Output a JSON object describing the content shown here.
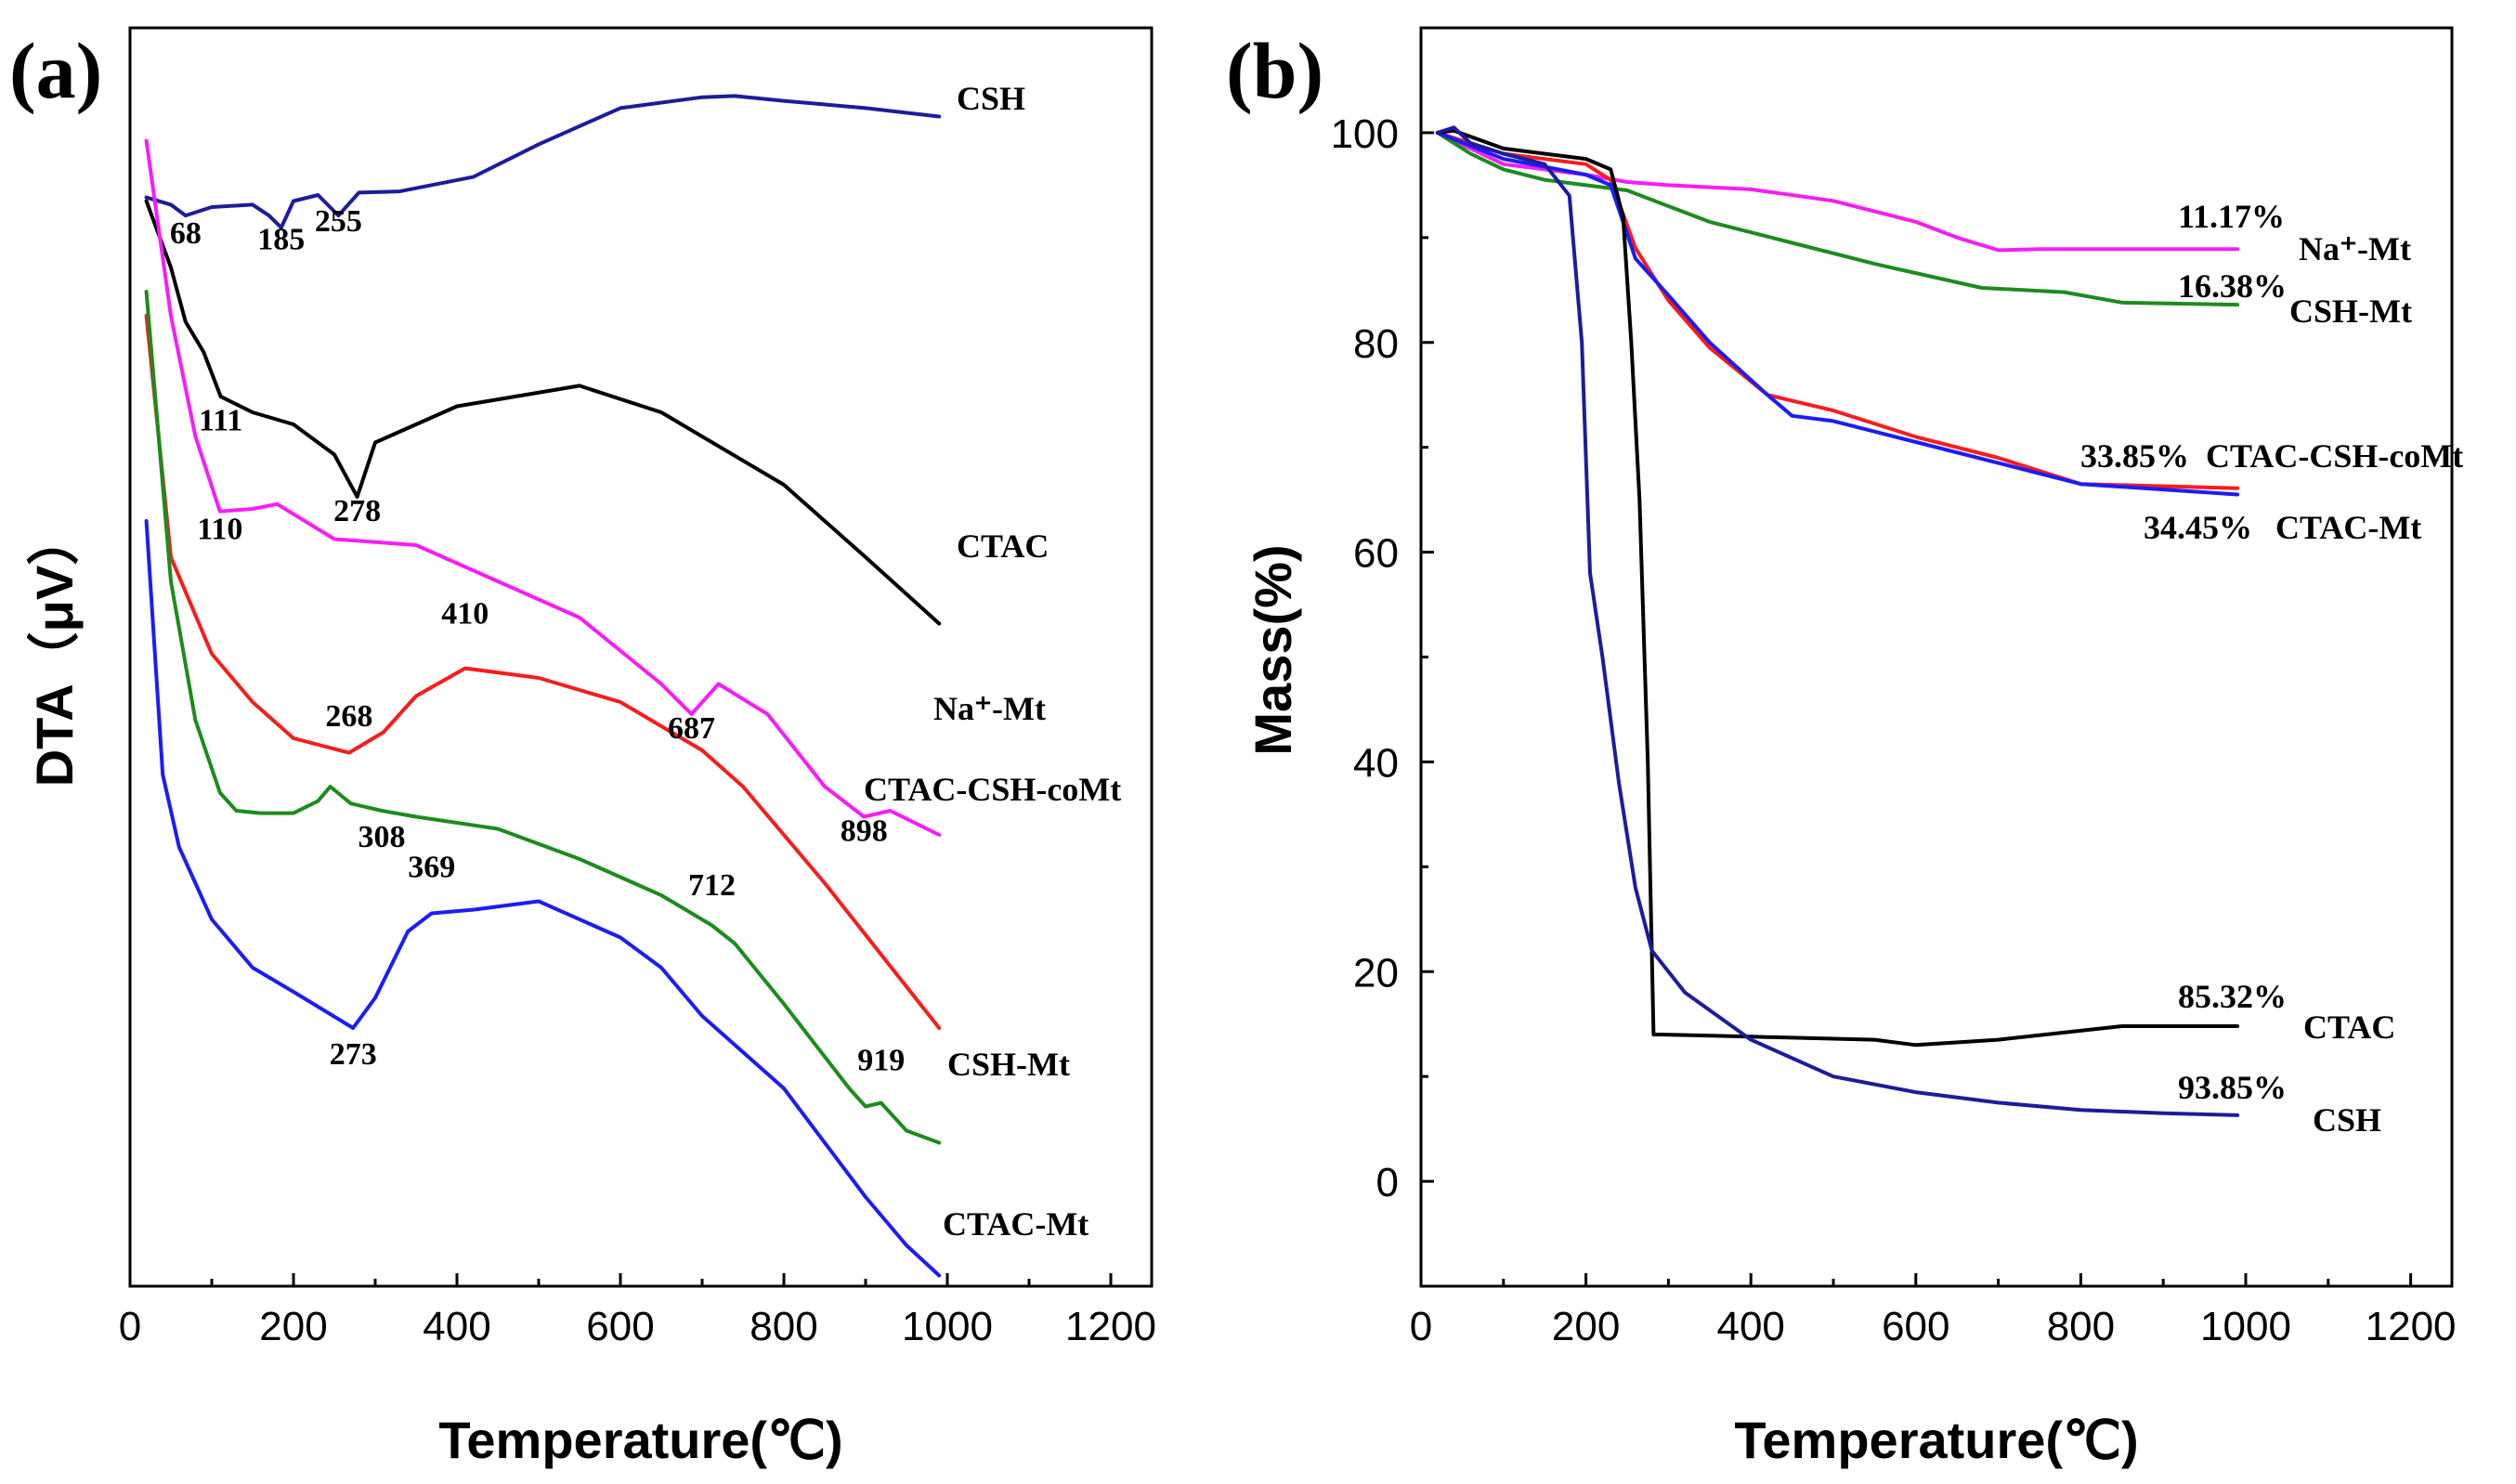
{
  "chart_data": [
    {
      "type": "line",
      "panel_label": "(a)",
      "xlabel": "Temperature(℃)",
      "ylabel": "DTA（μV）",
      "xlim": [
        0,
        1250
      ],
      "ylim": [
        0,
        100
      ],
      "xticks": [
        "0",
        "200",
        "400",
        "600",
        "800",
        "1000",
        "1200"
      ],
      "y_ticks_shown": false,
      "note": "y values are relative vertical positions (arbitrary units)",
      "series": [
        {
          "name": "CSH",
          "color": "#1c1c9c",
          "x": [
            20,
            50,
            68,
            100,
            150,
            170,
            185,
            200,
            230,
            255,
            280,
            330,
            420,
            500,
            600,
            700,
            740,
            800,
            900,
            990
          ],
          "y": [
            89.8,
            89.2,
            88.3,
            89.0,
            89.2,
            88.3,
            87.3,
            89.5,
            90.0,
            88.3,
            90.2,
            90.3,
            91.5,
            94.2,
            97.2,
            98.1,
            98.2,
            97.8,
            97.2,
            96.5
          ]
        },
        {
          "name": "CTAC",
          "color": "#000000",
          "x": [
            20,
            50,
            68,
            90,
            111,
            150,
            200,
            250,
            278,
            300,
            400,
            550,
            650,
            800,
            900,
            990
          ],
          "y": [
            89.5,
            84.0,
            79.5,
            77.0,
            73.3,
            72.0,
            71.0,
            68.5,
            65.0,
            69.5,
            72.5,
            74.2,
            72.0,
            66.0,
            60.0,
            54.5
          ]
        },
        {
          "name": "Na⁺-Mt",
          "color": "#f81cf8",
          "x": [
            20,
            50,
            80,
            110,
            150,
            180,
            250,
            350,
            450,
            550,
            650,
            687,
            720,
            780,
            850,
            898,
            930,
            990
          ],
          "y": [
            94.5,
            80.0,
            70.0,
            63.8,
            64.0,
            64.4,
            61.5,
            61.0,
            58.0,
            55.0,
            49.5,
            47.0,
            49.5,
            47.0,
            41.0,
            38.5,
            39.0,
            37.0
          ]
        },
        {
          "name": "CTAC-CSH-coMt",
          "color": "#f81c1c",
          "x": [
            20,
            50,
            100,
            150,
            200,
            268,
            310,
            350,
            410,
            500,
            600,
            700,
            750,
            850,
            990
          ],
          "y": [
            80.0,
            60.0,
            52.0,
            48.0,
            45.0,
            43.8,
            45.5,
            48.5,
            50.8,
            50.0,
            48.0,
            44.0,
            41.0,
            33.0,
            21.0
          ]
        },
        {
          "name": "CSH-Mt",
          "color": "#1c8c1c",
          "x": [
            20,
            50,
            80,
            110,
            130,
            160,
            200,
            230,
            245,
            270,
            308,
            350,
            450,
            550,
            650,
            712,
            740,
            800,
            880,
            900,
            919,
            950,
            990
          ],
          "y": [
            82.0,
            58.0,
            46.5,
            40.5,
            39.0,
            38.8,
            38.8,
            39.8,
            41.0,
            39.6,
            39.0,
            38.5,
            37.5,
            35.0,
            32.0,
            29.5,
            28.0,
            23.0,
            16.0,
            14.5,
            14.8,
            12.5,
            11.5
          ]
        },
        {
          "name": "CTAC-Mt",
          "color": "#1c1cf8",
          "x": [
            20,
            40,
            60,
            100,
            150,
            200,
            273,
            300,
            340,
            369,
            420,
            500,
            600,
            650,
            700,
            800,
            900,
            950,
            990
          ],
          "y": [
            63.0,
            42.0,
            36.0,
            30.0,
            26.0,
            24.0,
            21.0,
            23.5,
            29.0,
            30.5,
            30.8,
            31.5,
            28.5,
            26.0,
            22.0,
            16.0,
            7.0,
            3.0,
            0.5
          ]
        }
      ],
      "annotations": [
        {
          "text": "68",
          "x": 68,
          "y": 86.0
        },
        {
          "text": "185",
          "x": 185,
          "y": 85.5
        },
        {
          "text": "255",
          "x": 255,
          "y": 87.0
        },
        {
          "text": "111",
          "x": 111,
          "y": 70.5
        },
        {
          "text": "278",
          "x": 278,
          "y": 63.0
        },
        {
          "text": "110",
          "x": 110,
          "y": 61.5
        },
        {
          "text": "410",
          "x": 410,
          "y": 54.5
        },
        {
          "text": "687",
          "x": 687,
          "y": 45.0
        },
        {
          "text": "268",
          "x": 268,
          "y": 46.0
        },
        {
          "text": "308",
          "x": 308,
          "y": 36.0
        },
        {
          "text": "898",
          "x": 898,
          "y": 36.5
        },
        {
          "text": "712",
          "x": 712,
          "y": 32.0
        },
        {
          "text": "369",
          "x": 369,
          "y": 33.5
        },
        {
          "text": "273",
          "x": 273,
          "y": 18.0
        },
        {
          "text": "919",
          "x": 919,
          "y": 17.5
        }
      ]
    },
    {
      "type": "line",
      "panel_label": "(b)",
      "xlabel": "Temperature(℃)",
      "ylabel": "Mass(%)",
      "xlim": [
        0,
        1250
      ],
      "ylim": [
        -10,
        110
      ],
      "xticks": [
        "0",
        "200",
        "400",
        "600",
        "800",
        "1000",
        "1200"
      ],
      "yticks": [
        "0",
        "20",
        "40",
        "60",
        "80",
        "100"
      ],
      "series": [
        {
          "name": "Na⁺-Mt",
          "color": "#f81cf8",
          "mass_loss": "11.17%",
          "x": [
            20,
            100,
            200,
            250,
            300,
            400,
            500,
            600,
            650,
            700,
            750,
            990
          ],
          "y": [
            100,
            97.0,
            96.0,
            95.3,
            95.0,
            94.6,
            93.5,
            91.5,
            90.0,
            88.8,
            88.9,
            88.9
          ]
        },
        {
          "name": "CSH-Mt",
          "color": "#1c8c1c",
          "mass_loss": "16.38%",
          "x": [
            20,
            60,
            100,
            150,
            200,
            250,
            300,
            350,
            450,
            550,
            680,
            780,
            850,
            990
          ],
          "y": [
            100,
            98.0,
            96.5,
            95.5,
            95.0,
            94.5,
            93.0,
            91.5,
            89.5,
            87.5,
            85.2,
            84.8,
            83.8,
            83.6
          ]
        },
        {
          "name": "CTAC-CSH-coMt",
          "color": "#f81c1c",
          "mass_loss": "33.85%",
          "x": [
            20,
            100,
            200,
            230,
            260,
            300,
            350,
            420,
            500,
            600,
            700,
            800,
            990
          ],
          "y": [
            100,
            98.0,
            97.0,
            95.5,
            89.0,
            84.0,
            79.5,
            75.0,
            73.5,
            71.0,
            69.0,
            66.5,
            66.1
          ]
        },
        {
          "name": "CTAC-Mt",
          "color": "#1c1cf8",
          "mass_loss": "34.45%",
          "x": [
            20,
            100,
            200,
            230,
            260,
            300,
            350,
            420,
            450,
            500,
            600,
            700,
            800,
            990
          ],
          "y": [
            100,
            97.5,
            96.0,
            95.0,
            88.0,
            84.5,
            80.0,
            75.0,
            73.0,
            72.5,
            70.5,
            68.5,
            66.5,
            65.5
          ]
        },
        {
          "name": "CTAC",
          "color": "#000000",
          "mass_loss": "85.32%",
          "x": [
            20,
            40,
            100,
            200,
            230,
            245,
            255,
            265,
            275,
            282,
            290,
            400,
            550,
            600,
            700,
            850,
            990
          ],
          "y": [
            100,
            100.2,
            98.5,
            97.5,
            96.5,
            92.0,
            80.0,
            65.0,
            40.0,
            14.0,
            14.0,
            13.8,
            13.5,
            13.0,
            13.5,
            14.8,
            14.8
          ]
        },
        {
          "name": "CSH",
          "color": "#1c1c9c",
          "mass_loss": "93.85%",
          "x": [
            20,
            40,
            60,
            100,
            150,
            180,
            195,
            205,
            220,
            240,
            260,
            280,
            320,
            400,
            500,
            600,
            700,
            800,
            900,
            990
          ],
          "y": [
            100,
            100.5,
            99.0,
            98.0,
            97.0,
            94.0,
            80.0,
            58.0,
            50.0,
            38.0,
            28.0,
            22.0,
            18.0,
            13.5,
            10.0,
            8.5,
            7.5,
            6.8,
            6.5,
            6.3
          ]
        }
      ]
    }
  ]
}
